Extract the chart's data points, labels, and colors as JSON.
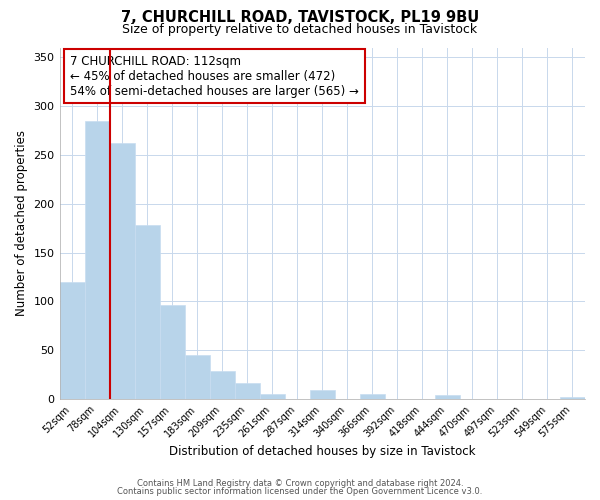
{
  "title": "7, CHURCHILL ROAD, TAVISTOCK, PL19 9BU",
  "subtitle": "Size of property relative to detached houses in Tavistock",
  "xlabel": "Distribution of detached houses by size in Tavistock",
  "ylabel": "Number of detached properties",
  "bins": [
    "52sqm",
    "78sqm",
    "104sqm",
    "130sqm",
    "157sqm",
    "183sqm",
    "209sqm",
    "235sqm",
    "261sqm",
    "287sqm",
    "314sqm",
    "340sqm",
    "366sqm",
    "392sqm",
    "418sqm",
    "444sqm",
    "470sqm",
    "497sqm",
    "523sqm",
    "549sqm",
    "575sqm"
  ],
  "values": [
    120,
    285,
    262,
    178,
    96,
    45,
    29,
    16,
    5,
    0,
    9,
    0,
    5,
    0,
    0,
    4,
    0,
    0,
    0,
    0,
    2
  ],
  "bar_color": "#b8d4ea",
  "bar_edge_color": "#c8ddf0",
  "vline_color": "#cc0000",
  "vline_index": 1.5,
  "annotation_text": "7 CHURCHILL ROAD: 112sqm\n← 45% of detached houses are smaller (472)\n54% of semi-detached houses are larger (565) →",
  "annotation_box_color": "#ffffff",
  "annotation_box_edge": "#cc0000",
  "ylim": [
    0,
    360
  ],
  "yticks": [
    0,
    50,
    100,
    150,
    200,
    250,
    300,
    350
  ],
  "footer1": "Contains HM Land Registry data © Crown copyright and database right 2024.",
  "footer2": "Contains public sector information licensed under the Open Government Licence v3.0.",
  "background_color": "#ffffff",
  "grid_color": "#c8d8ec"
}
